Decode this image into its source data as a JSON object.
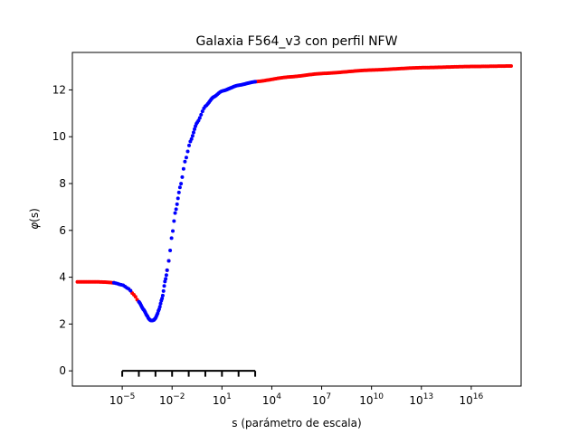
{
  "chart_data": {
    "type": "scatter",
    "title": "Galaxia F564_v3 con perfil NFW",
    "xlabel": "s (parámetro de escala)",
    "ylabel_base": "φ",
    "ylabel_arg": "(s)",
    "x_scale": "log",
    "xlim": [
      1e-08,
      1e+19
    ],
    "ylim": [
      -0.65,
      13.6
    ],
    "y_ticks": [
      {
        "value": 0,
        "label": "0"
      },
      {
        "value": 2,
        "label": "2"
      },
      {
        "value": 4,
        "label": "4"
      },
      {
        "value": 6,
        "label": "6"
      },
      {
        "value": 8,
        "label": "8"
      },
      {
        "value": 10,
        "label": "10"
      },
      {
        "value": 12,
        "label": "12"
      }
    ],
    "x_ticks": [
      {
        "value": 1e-05,
        "base": "10",
        "exp": "−5"
      },
      {
        "value": 0.01,
        "base": "10",
        "exp": "−2"
      },
      {
        "value": 10.0,
        "base": "10",
        "exp": "1"
      },
      {
        "value": 10000.0,
        "base": "10",
        "exp": "4"
      },
      {
        "value": 10000000.0,
        "base": "10",
        "exp": "7"
      },
      {
        "value": 10000000000.0,
        "base": "10",
        "exp": "10"
      },
      {
        "value": 10000000000000.0,
        "base": "10",
        "exp": "13"
      },
      {
        "value": 1e+16,
        "base": "10",
        "exp": "16"
      }
    ],
    "bracket": {
      "y": 0,
      "x_start": 1e-05,
      "x_end": 1000.0,
      "tick_height": 0.25,
      "ticks": [
        1e-05,
        0.0001,
        0.001,
        0.01,
        0.1,
        1.0,
        10.0,
        100.0,
        1000.0
      ]
    },
    "colors": {
      "red": "#ff0000",
      "blue": "#0000ff",
      "axes": "#000000"
    },
    "series": [
      {
        "color": "red",
        "segments": [
          {
            "from": -7.7,
            "to": -5.5,
            "n": 25,
            "style": "dense"
          },
          {
            "from": -4.5,
            "to": -4.0,
            "n": 6,
            "style": "dense"
          },
          {
            "from": -2.3,
            "to": -2.2,
            "n": 2,
            "style": "dense"
          },
          {
            "from": 3.0,
            "to": 18.4,
            "n": 160,
            "style": "dense"
          }
        ]
      },
      {
        "color": "blue",
        "segments": [
          {
            "from": -5.5,
            "to": -4.5,
            "n": 10,
            "style": "dense"
          },
          {
            "from": -4.0,
            "to": -2.3,
            "n": 40,
            "style": "dense"
          },
          {
            "from": -2.2,
            "to": 3.0,
            "n": 75,
            "style": "sparse"
          }
        ]
      }
    ],
    "curve": [
      {
        "log_s": -7.7,
        "y": 3.8
      },
      {
        "log_s": -6.5,
        "y": 3.8
      },
      {
        "log_s": -6.0,
        "y": 3.79
      },
      {
        "log_s": -5.5,
        "y": 3.76
      },
      {
        "log_s": -5.0,
        "y": 3.67
      },
      {
        "log_s": -4.6,
        "y": 3.5
      },
      {
        "log_s": -4.3,
        "y": 3.25
      },
      {
        "log_s": -4.0,
        "y": 2.95
      },
      {
        "log_s": -3.7,
        "y": 2.6
      },
      {
        "log_s": -3.5,
        "y": 2.35
      },
      {
        "log_s": -3.4,
        "y": 2.22
      },
      {
        "log_s": -3.3,
        "y": 2.16
      },
      {
        "log_s": -3.2,
        "y": 2.15
      },
      {
        "log_s": -3.1,
        "y": 2.17
      },
      {
        "log_s": -3.0,
        "y": 2.25
      },
      {
        "log_s": -2.9,
        "y": 2.4
      },
      {
        "log_s": -2.8,
        "y": 2.6
      },
      {
        "log_s": -2.6,
        "y": 3.1
      },
      {
        "log_s": -2.4,
        "y": 3.9
      },
      {
        "log_s": -2.2,
        "y": 4.7
      },
      {
        "log_s": -2.0,
        "y": 5.8
      },
      {
        "log_s": -1.8,
        "y": 6.8
      },
      {
        "log_s": -1.5,
        "y": 7.9
      },
      {
        "log_s": -1.2,
        "y": 9.0
      },
      {
        "log_s": -0.9,
        "y": 9.8
      },
      {
        "log_s": -0.5,
        "y": 10.6
      },
      {
        "log_s": 0.0,
        "y": 11.3
      },
      {
        "log_s": 0.5,
        "y": 11.7
      },
      {
        "log_s": 1.0,
        "y": 11.95
      },
      {
        "log_s": 2.0,
        "y": 12.2
      },
      {
        "log_s": 3.0,
        "y": 12.35
      },
      {
        "log_s": 5.0,
        "y": 12.55
      },
      {
        "log_s": 7.0,
        "y": 12.7
      },
      {
        "log_s": 10.0,
        "y": 12.85
      },
      {
        "log_s": 13.0,
        "y": 12.95
      },
      {
        "log_s": 16.0,
        "y": 13.0
      },
      {
        "log_s": 18.4,
        "y": 13.02
      }
    ]
  }
}
